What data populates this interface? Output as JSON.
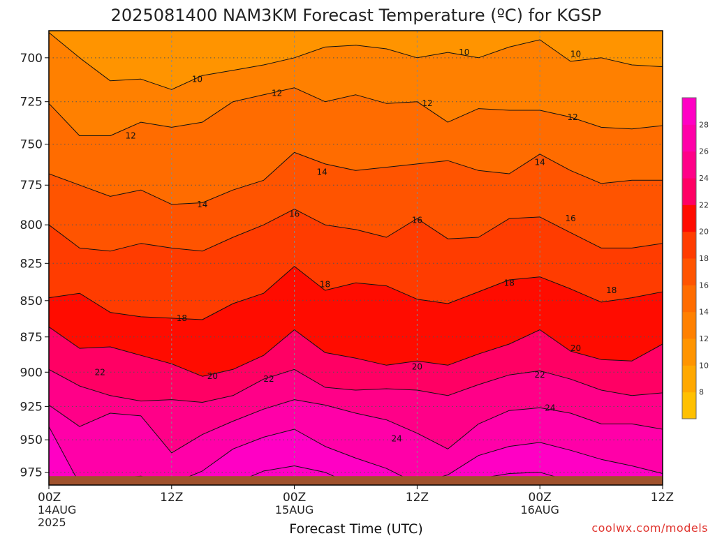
{
  "chart_data": {
    "type": "heatmap",
    "title": "2025081400 NAM3KM Forecast Temperature (ºC) for KGSP",
    "xlabel": "Forecast Time (UTC)",
    "ylabel": "",
    "x_ticks": [
      {
        "hour": 0,
        "label": "00Z",
        "sub": [
          "14AUG",
          "2025"
        ]
      },
      {
        "hour": 12,
        "label": "12Z",
        "sub": []
      },
      {
        "hour": 24,
        "label": "00Z",
        "sub": [
          "15AUG"
        ]
      },
      {
        "hour": 36,
        "label": "12Z",
        "sub": []
      },
      {
        "hour": 48,
        "label": "00Z",
        "sub": [
          "16AUG"
        ]
      },
      {
        "hour": 60,
        "label": "12Z",
        "sub": []
      }
    ],
    "xlim": [
      0,
      60
    ],
    "y_ticks": [
      700,
      725,
      750,
      775,
      800,
      825,
      850,
      875,
      900,
      925,
      950,
      975
    ],
    "ylim": [
      685,
      985
    ],
    "y_scale": "log-pressure",
    "ground_pressure": 978,
    "colorbar": {
      "levels": [
        6,
        8,
        10,
        12,
        14,
        16,
        18,
        20,
        22,
        24,
        26,
        28,
        30
      ],
      "labels": [
        "8",
        "10",
        "12",
        "14",
        "16",
        "18",
        "20",
        "22",
        "24",
        "26",
        "28"
      ],
      "colors": [
        "#ffc000",
        "#ffa800",
        "#ff9400",
        "#ff8000",
        "#ff6c00",
        "#ff5400",
        "#ff3c00",
        "#ff0c00",
        "#ff0064",
        "#ff0088",
        "#ff00a8",
        "#ff00c4"
      ]
    },
    "x_hours": [
      0,
      3,
      6,
      9,
      12,
      15,
      18,
      21,
      24,
      27,
      30,
      33,
      36,
      39,
      42,
      45,
      48,
      51,
      54,
      57,
      60
    ],
    "contours": [
      {
        "level": 10,
        "pressure": [
          686,
          700,
          713,
          712,
          718,
          710,
          707,
          704,
          700,
          694,
          693,
          695,
          700,
          697,
          700,
          694,
          690,
          702,
          700,
          704,
          705
        ]
      },
      {
        "level": 12,
        "pressure": [
          726,
          745,
          745,
          737,
          740,
          737,
          725,
          721,
          717,
          725,
          721,
          726,
          725,
          737,
          729,
          730,
          730,
          734,
          740,
          741,
          739
        ]
      },
      {
        "level": 14,
        "pressure": [
          768,
          775,
          782,
          778,
          787,
          786,
          778,
          772,
          755,
          762,
          766,
          764,
          762,
          760,
          766,
          768,
          756,
          766,
          774,
          772,
          772
        ]
      },
      {
        "level": 16,
        "pressure": [
          800,
          815,
          817,
          812,
          815,
          817,
          808,
          800,
          790,
          800,
          803,
          808,
          796,
          809,
          808,
          796,
          795,
          805,
          815,
          815,
          812
        ]
      },
      {
        "level": 18,
        "pressure": [
          848,
          845,
          858,
          861,
          862,
          863,
          852,
          845,
          827,
          843,
          838,
          840,
          849,
          852,
          844,
          836,
          834,
          842,
          851,
          848,
          844
        ]
      },
      {
        "level": 20,
        "pressure": [
          868,
          883,
          882,
          888,
          894,
          903,
          898,
          888,
          870,
          886,
          890,
          895,
          892,
          895,
          887,
          880,
          870,
          885,
          891,
          892,
          880
        ]
      },
      {
        "level": 22,
        "pressure": [
          898,
          910,
          917,
          921,
          920,
          922,
          917,
          905,
          898,
          911,
          913,
          912,
          913,
          917,
          909,
          902,
          899,
          905,
          913,
          917,
          915
        ]
      },
      {
        "level": 24,
        "pressure": [
          924,
          940,
          930,
          932,
          960,
          946,
          936,
          927,
          920,
          924,
          930,
          935,
          945,
          957,
          938,
          928,
          926,
          930,
          938,
          938,
          942
        ]
      },
      {
        "level": 26,
        "pressure": [
          940,
          984,
          980,
          978,
          984,
          974,
          957,
          948,
          942,
          955,
          964,
          972,
          984,
          977,
          962,
          955,
          952,
          958,
          965,
          970,
          976
        ]
      },
      {
        "level": 28,
        "pressure": [
          986,
          986,
          986,
          986,
          986,
          986,
          984,
          974,
          970,
          975,
          986,
          986,
          986,
          986,
          980,
          976,
          975,
          982,
          986,
          986,
          986
        ]
      }
    ],
    "contour_labels": [
      {
        "text": "10",
        "hour": 14.5,
        "pressure": 712
      },
      {
        "text": "10",
        "hour": 40.6,
        "pressure": 697
      },
      {
        "text": "10",
        "hour": 51.5,
        "pressure": 698
      },
      {
        "text": "12",
        "hour": 8.0,
        "pressure": 745
      },
      {
        "text": "12",
        "hour": 22.3,
        "pressure": 720
      },
      {
        "text": "12",
        "hour": 37.0,
        "pressure": 726
      },
      {
        "text": "12",
        "hour": 51.2,
        "pressure": 734
      },
      {
        "text": "14",
        "hour": 15.0,
        "pressure": 787
      },
      {
        "text": "14",
        "hour": 26.7,
        "pressure": 767
      },
      {
        "text": "14",
        "hour": 48.0,
        "pressure": 761
      },
      {
        "text": "16",
        "hour": 24.0,
        "pressure": 793
      },
      {
        "text": "16",
        "hour": 36.0,
        "pressure": 797
      },
      {
        "text": "16",
        "hour": 51.0,
        "pressure": 796
      },
      {
        "text": "18",
        "hour": 13.0,
        "pressure": 862
      },
      {
        "text": "18",
        "hour": 27.0,
        "pressure": 839
      },
      {
        "text": "18",
        "hour": 45.0,
        "pressure": 838
      },
      {
        "text": "18",
        "hour": 55.0,
        "pressure": 843
      },
      {
        "text": "20",
        "hour": 16.0,
        "pressure": 903
      },
      {
        "text": "20",
        "hour": 36.0,
        "pressure": 896
      },
      {
        "text": "20",
        "hour": 51.5,
        "pressure": 883
      },
      {
        "text": "22",
        "hour": 5.0,
        "pressure": 900
      },
      {
        "text": "22",
        "hour": 21.5,
        "pressure": 905
      },
      {
        "text": "22",
        "hour": 48.0,
        "pressure": 902
      },
      {
        "text": "24",
        "hour": 49.0,
        "pressure": 926
      },
      {
        "text": "24",
        "hour": 34.0,
        "pressure": 949
      }
    ]
  },
  "credit": "coolwx.com/models"
}
